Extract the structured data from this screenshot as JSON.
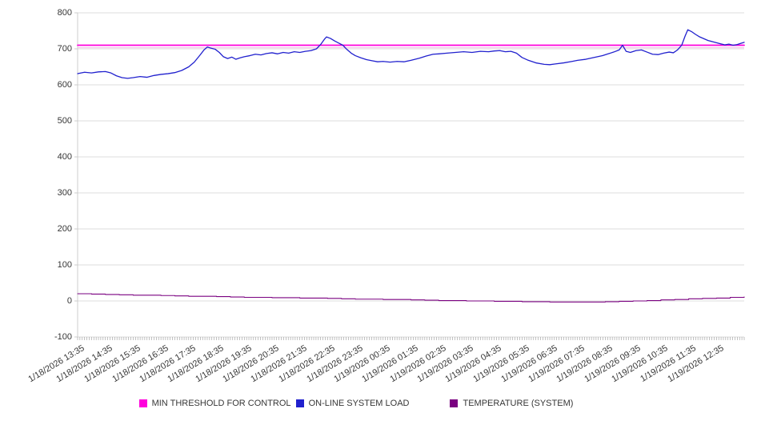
{
  "chart_data": {
    "type": "line",
    "title": "",
    "xlabel": "",
    "ylabel": "",
    "ylim": [
      -100,
      800
    ],
    "y_tick_step": 100,
    "y_tick_labels": [
      "800",
      "700",
      "600",
      "500",
      "400",
      "300",
      "200",
      "100",
      "0",
      "-100"
    ],
    "x_span_hours": 24,
    "minor_ticks_per_hour": 12,
    "grid": "horizontal",
    "legend_position": "bottom",
    "x_labels": [
      "1/18/2026 13:35",
      "1/18/2026 14:35",
      "1/18/2026 15:35",
      "1/18/2026 16:35",
      "1/18/2026 17:35",
      "1/18/2026 18:35",
      "1/18/2026 19:35",
      "1/18/2026 20:35",
      "1/18/2026 21:35",
      "1/18/2026 22:35",
      "1/18/2026 23:35",
      "1/19/2026 00:35",
      "1/19/2026 01:35",
      "1/19/2026 02:35",
      "1/19/2026 03:35",
      "1/19/2026 04:35",
      "1/19/2026 05:35",
      "1/19/2026 06:35",
      "1/19/2026 07:35",
      "1/19/2026 08:35",
      "1/19/2026 09:35",
      "1/19/2026 10:35",
      "1/19/2026 11:35",
      "1/19/2026 12:35"
    ],
    "threshold_echo": {
      "value": 703,
      "color": "#F6BCE8"
    },
    "series": [
      {
        "name": "MIN THRESHOLD FOR CONTROL",
        "color": "#FF00DC",
        "width": 1.8,
        "step": false,
        "points": [
          [
            0,
            710
          ],
          [
            24,
            710
          ]
        ]
      },
      {
        "name": "ON-LINE SYSTEM LOAD",
        "color": "#2121CE",
        "width": 1.3,
        "step": false,
        "points": [
          [
            0,
            631
          ],
          [
            0.25,
            635
          ],
          [
            0.5,
            633
          ],
          [
            0.75,
            636
          ],
          [
            1,
            637
          ],
          [
            1.2,
            633
          ],
          [
            1.4,
            625
          ],
          [
            1.6,
            620
          ],
          [
            1.8,
            618
          ],
          [
            2,
            620
          ],
          [
            2.25,
            623
          ],
          [
            2.5,
            621
          ],
          [
            2.75,
            626
          ],
          [
            3,
            629
          ],
          [
            3.25,
            631
          ],
          [
            3.5,
            634
          ],
          [
            3.75,
            640
          ],
          [
            4,
            650
          ],
          [
            4.2,
            663
          ],
          [
            4.4,
            682
          ],
          [
            4.55,
            697
          ],
          [
            4.67,
            705
          ],
          [
            4.8,
            702
          ],
          [
            4.95,
            699
          ],
          [
            5.1,
            690
          ],
          [
            5.25,
            678
          ],
          [
            5.4,
            673
          ],
          [
            5.55,
            677
          ],
          [
            5.7,
            671
          ],
          [
            5.85,
            675
          ],
          [
            6,
            678
          ],
          [
            6.2,
            681
          ],
          [
            6.4,
            685
          ],
          [
            6.6,
            683
          ],
          [
            6.8,
            687
          ],
          [
            7,
            689
          ],
          [
            7.2,
            686
          ],
          [
            7.4,
            690
          ],
          [
            7.6,
            688
          ],
          [
            7.8,
            692
          ],
          [
            8,
            690
          ],
          [
            8.2,
            693
          ],
          [
            8.4,
            695
          ],
          [
            8.6,
            700
          ],
          [
            8.75,
            712
          ],
          [
            8.9,
            728
          ],
          [
            8.96,
            733
          ],
          [
            9.1,
            729
          ],
          [
            9.25,
            722
          ],
          [
            9.4,
            716
          ],
          [
            9.55,
            710
          ],
          [
            9.7,
            698
          ],
          [
            9.85,
            688
          ],
          [
            10,
            681
          ],
          [
            10.2,
            675
          ],
          [
            10.4,
            670
          ],
          [
            10.6,
            667
          ],
          [
            10.8,
            664
          ],
          [
            11,
            665
          ],
          [
            11.25,
            663
          ],
          [
            11.5,
            665
          ],
          [
            11.75,
            664
          ],
          [
            12,
            668
          ],
          [
            12.3,
            674
          ],
          [
            12.55,
            680
          ],
          [
            12.8,
            685
          ],
          [
            13,
            686
          ],
          [
            13.3,
            688
          ],
          [
            13.6,
            690
          ],
          [
            13.9,
            692
          ],
          [
            14.2,
            690
          ],
          [
            14.5,
            693
          ],
          [
            14.8,
            692
          ],
          [
            15,
            694
          ],
          [
            15.2,
            695
          ],
          [
            15.4,
            692
          ],
          [
            15.6,
            693
          ],
          [
            15.8,
            688
          ],
          [
            16,
            676
          ],
          [
            16.2,
            669
          ],
          [
            16.5,
            661
          ],
          [
            16.8,
            657
          ],
          [
            17,
            656
          ],
          [
            17.2,
            658
          ],
          [
            17.5,
            661
          ],
          [
            17.8,
            665
          ],
          [
            18,
            668
          ],
          [
            18.3,
            671
          ],
          [
            18.6,
            676
          ],
          [
            18.9,
            681
          ],
          [
            19.1,
            686
          ],
          [
            19.3,
            691
          ],
          [
            19.5,
            697
          ],
          [
            19.62,
            710
          ],
          [
            19.75,
            693
          ],
          [
            19.9,
            690
          ],
          [
            20.1,
            695
          ],
          [
            20.3,
            697
          ],
          [
            20.5,
            691
          ],
          [
            20.7,
            685
          ],
          [
            20.9,
            684
          ],
          [
            21.1,
            688
          ],
          [
            21.3,
            691
          ],
          [
            21.45,
            689
          ],
          [
            21.6,
            697
          ],
          [
            21.75,
            710
          ],
          [
            21.87,
            735
          ],
          [
            21.97,
            753
          ],
          [
            22.1,
            748
          ],
          [
            22.25,
            740
          ],
          [
            22.4,
            733
          ],
          [
            22.55,
            728
          ],
          [
            22.7,
            723
          ],
          [
            22.85,
            720
          ],
          [
            23,
            717
          ],
          [
            23.15,
            714
          ],
          [
            23.3,
            711
          ],
          [
            23.45,
            713
          ],
          [
            23.6,
            710
          ],
          [
            23.75,
            712
          ],
          [
            23.87,
            715
          ],
          [
            24,
            718
          ]
        ]
      },
      {
        "name": "TEMPERATURE (SYSTEM)",
        "color": "#7A0080",
        "width": 1.1,
        "step": true,
        "points": [
          [
            0,
            20
          ],
          [
            0.5,
            19
          ],
          [
            1,
            18
          ],
          [
            1.5,
            17
          ],
          [
            2,
            16
          ],
          [
            3,
            15
          ],
          [
            3.5,
            14
          ],
          [
            4,
            13
          ],
          [
            5,
            12
          ],
          [
            5.5,
            11
          ],
          [
            6,
            10
          ],
          [
            7,
            9
          ],
          [
            8,
            8
          ],
          [
            9,
            7
          ],
          [
            9.5,
            6
          ],
          [
            10,
            5
          ],
          [
            11,
            4
          ],
          [
            12,
            3
          ],
          [
            12.5,
            2
          ],
          [
            13,
            1
          ],
          [
            14,
            0
          ],
          [
            15,
            -1
          ],
          [
            16,
            -2
          ],
          [
            17,
            -3
          ],
          [
            18,
            -3
          ],
          [
            19,
            -2
          ],
          [
            19.5,
            -1
          ],
          [
            20,
            0
          ],
          [
            20.5,
            1
          ],
          [
            21,
            3
          ],
          [
            21.5,
            4
          ],
          [
            22,
            6
          ],
          [
            22.5,
            7
          ],
          [
            23,
            8
          ],
          [
            23.5,
            10
          ],
          [
            24,
            11
          ]
        ]
      }
    ],
    "colors": {
      "grid": "#DDDDDD",
      "axis_line": "#CCCCCC",
      "minor_tick": "#999999",
      "label_text": "#363636"
    }
  }
}
